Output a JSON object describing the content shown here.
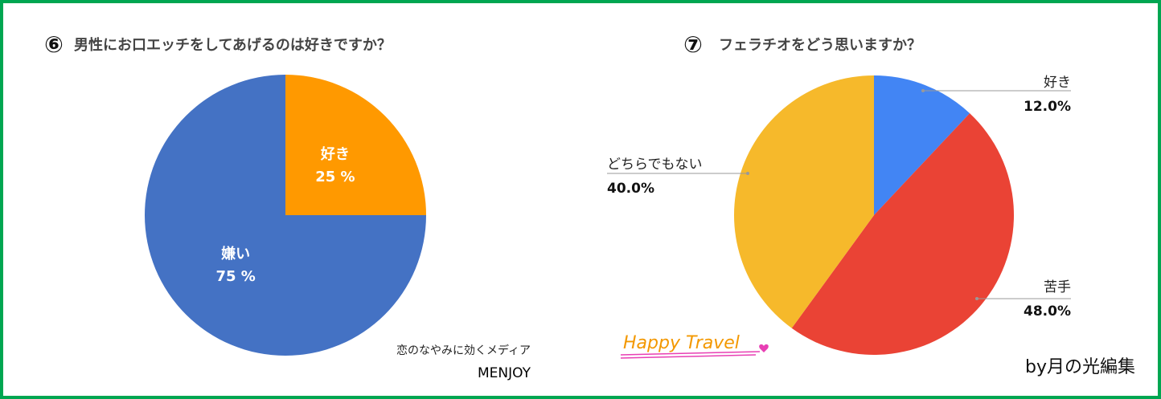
{
  "chart_data": [
    {
      "type": "pie",
      "number": "⑥",
      "title": "男性にお口エッチをしてあげるのは好きですか？",
      "categories": [
        "好き",
        "嫌い"
      ],
      "values": [
        25,
        75
      ],
      "value_labels": [
        "25 %",
        "75 %"
      ],
      "colors": [
        "#ff9900",
        "#4472c4"
      ],
      "labels": "inside",
      "annotations": [
        "恋のなやみに効くメディア",
        "MENJOY"
      ]
    },
    {
      "type": "pie",
      "number": "⑦",
      "title": "フェラチオをどう思いますか？",
      "categories": [
        "好き",
        "苦手",
        "どちらでもない"
      ],
      "values": [
        12.0,
        48.0,
        40.0
      ],
      "value_labels": [
        "12.0%",
        "48.0%",
        "40.0%"
      ],
      "colors": [
        "#4285f4",
        "#ea4335",
        "#f6b92b"
      ],
      "labels": "outside",
      "annotations": [
        "Happy Travel",
        "by月の光編集"
      ]
    }
  ]
}
